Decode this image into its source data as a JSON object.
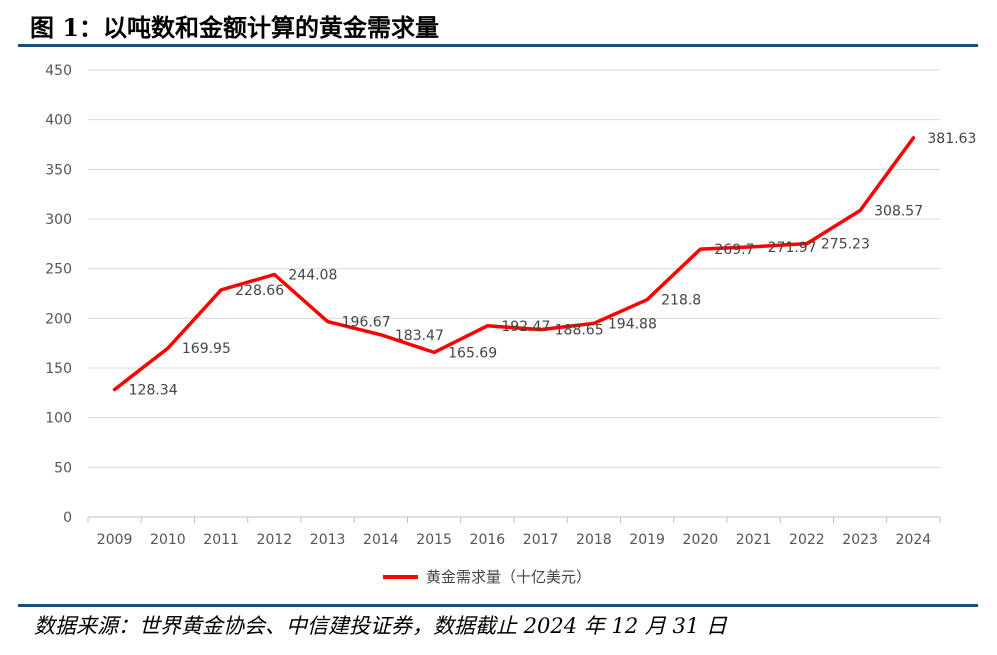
{
  "header": {
    "title": "图 1：以吨数和金额计算的黄金需求量"
  },
  "footer": {
    "source": "数据来源：世界黄金协会、中信建投证券，数据截止 2024 年 12 月 31 日"
  },
  "colors": {
    "line": "#ff0000",
    "rule": "#1f4e79",
    "grid": "#d9d9d9",
    "text": "#595959"
  },
  "chart_data": {
    "type": "line",
    "title": "",
    "xlabel": "",
    "ylabel": "",
    "ylim": [
      0,
      450
    ],
    "yticks": [
      0,
      50,
      100,
      150,
      200,
      250,
      300,
      350,
      400,
      450
    ],
    "categories": [
      "2009",
      "2010",
      "2011",
      "2012",
      "2013",
      "2014",
      "2015",
      "2016",
      "2017",
      "2018",
      "2019",
      "2020",
      "2021",
      "2022",
      "2023",
      "2024"
    ],
    "series": [
      {
        "name": "黄金需求量（十亿美元）",
        "values": [
          128.34,
          169.95,
          228.66,
          244.08,
          196.67,
          183.47,
          165.69,
          192.47,
          188.65,
          194.88,
          218.8,
          269.7,
          271.97,
          275.23,
          308.57,
          381.63
        ],
        "data_labels": [
          "128.34",
          "169.95",
          "228.66",
          "244.08",
          "196.67",
          "183.47",
          "165.69",
          "192.47",
          "188.65",
          "194.88",
          "218.8",
          "269.7",
          "271.97",
          "275.23",
          "308.57",
          "381.63"
        ]
      }
    ],
    "grid": true,
    "legend": "bottom"
  }
}
